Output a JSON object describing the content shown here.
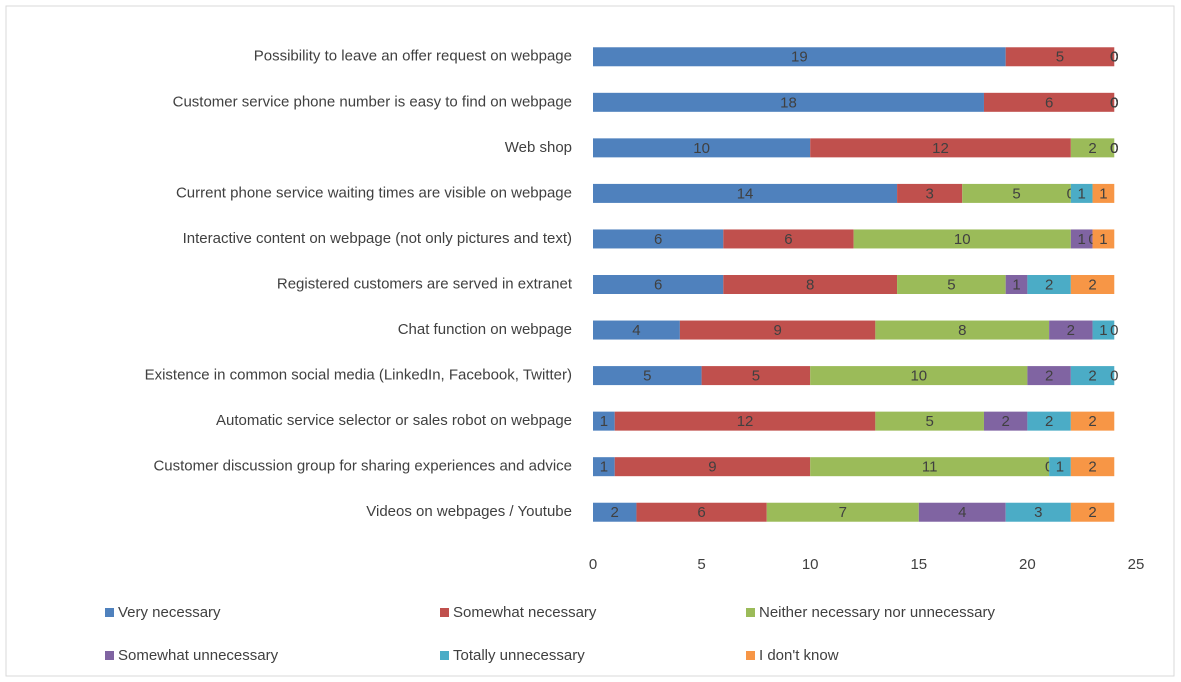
{
  "chart_data": {
    "type": "stacked_bar_horizontal",
    "categories": [
      "Possibility to leave an offer request on webpage",
      "Customer service phone number is easy to find on webpage",
      "Web shop",
      "Current phone service waiting times are visible on webpage",
      "Interactive content on webpage (not only pictures and text)",
      "Registered customers are served in extranet",
      "Chat function on webpage",
      "Existence in common social media (LinkedIn, Facebook, Twitter)",
      "Automatic service selector or sales robot on webpage",
      "Customer discussion group for sharing experiences and advice",
      "Videos on webpages / Youtube"
    ],
    "series": [
      {
        "name": "Very necessary",
        "color": "#4f81bd",
        "values": [
          19,
          18,
          10,
          14,
          6,
          6,
          4,
          5,
          1,
          1,
          2
        ]
      },
      {
        "name": "Somewhat necessary",
        "color": "#c0504d",
        "values": [
          5,
          6,
          12,
          3,
          6,
          8,
          9,
          5,
          12,
          9,
          6
        ]
      },
      {
        "name": "Neither necessary nor unnecessary",
        "color": "#9bbb59",
        "values": [
          0,
          0,
          2,
          5,
          10,
          5,
          8,
          10,
          5,
          11,
          7
        ]
      },
      {
        "name": "Somewhat unnecessary",
        "color": "#8064a2",
        "values": [
          0,
          0,
          0,
          0,
          1,
          1,
          2,
          2,
          2,
          0,
          4
        ]
      },
      {
        "name": "Totally unnecessary",
        "color": "#4bacc6",
        "values": [
          0,
          0,
          0,
          1,
          0,
          2,
          1,
          2,
          2,
          1,
          3
        ]
      },
      {
        "name": "I don't know",
        "color": "#f79646",
        "values": [
          0,
          0,
          0,
          1,
          1,
          2,
          0,
          0,
          2,
          2,
          2
        ]
      }
    ],
    "xlim": [
      0,
      25
    ],
    "xticks": [
      0,
      5,
      10,
      15,
      20,
      25
    ],
    "grid": false,
    "legend": "bottom"
  }
}
